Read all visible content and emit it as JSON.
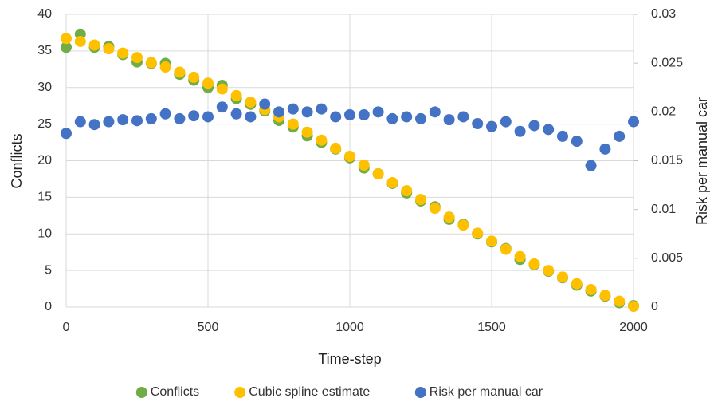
{
  "chart_data": {
    "type": "scatter",
    "x_label": "Time-step",
    "y_label": "Conflicts",
    "y2_label": "Risk per manual car",
    "x": [
      0,
      50,
      100,
      150,
      200,
      250,
      300,
      350,
      400,
      450,
      500,
      550,
      600,
      650,
      700,
      750,
      800,
      850,
      900,
      950,
      1000,
      1050,
      1100,
      1150,
      1200,
      1250,
      1300,
      1350,
      1400,
      1450,
      1500,
      1550,
      1600,
      1650,
      1700,
      1750,
      1800,
      1850,
      1900,
      1950,
      2000
    ],
    "series": [
      {
        "name": "Conflicts",
        "color": "#70ad47",
        "values": [
          35.5,
          37.3,
          35.5,
          35.6,
          34.5,
          33.5,
          33.3,
          33.3,
          31.8,
          31.0,
          30.0,
          30.3,
          28.5,
          27.7,
          26.8,
          25.5,
          24.6,
          23.4,
          22.5,
          21.6,
          20.4,
          19.0,
          18.2,
          16.9,
          15.6,
          14.5,
          13.7,
          12.0,
          11.3,
          10.0,
          8.9,
          8.0,
          6.5,
          5.8,
          4.9,
          4.0,
          3.0,
          2.2,
          1.5,
          0.6,
          0.2
        ]
      },
      {
        "name": "Cubic spline estimate",
        "color": "#ffc000",
        "values": [
          36.7,
          36.3,
          35.8,
          35.3,
          34.7,
          34.1,
          33.4,
          32.8,
          32.1,
          31.4,
          30.6,
          29.8,
          28.9,
          28.0,
          27.0,
          26.0,
          25.0,
          23.9,
          22.8,
          21.7,
          20.6,
          19.4,
          18.2,
          17.0,
          15.9,
          14.7,
          13.5,
          12.3,
          11.2,
          10.1,
          9.0,
          7.9,
          6.9,
          5.9,
          5.0,
          4.1,
          3.2,
          2.4,
          1.6,
          0.8,
          0.1
        ]
      },
      {
        "name": "Risk per manual car",
        "color": "#4472c4",
        "axis": "y2",
        "values": [
          0.0178,
          0.019,
          0.0187,
          0.019,
          0.0192,
          0.0191,
          0.0193,
          0.0198,
          0.0193,
          0.0196,
          0.0195,
          0.0205,
          0.0198,
          0.0195,
          0.0208,
          0.02,
          0.0203,
          0.02,
          0.0203,
          0.0195,
          0.0197,
          0.0197,
          0.02,
          0.0193,
          0.0195,
          0.0193,
          0.02,
          0.0192,
          0.0195,
          0.0188,
          0.0185,
          0.019,
          0.018,
          0.0186,
          0.0182,
          0.0175,
          0.017,
          0.0145,
          0.0162,
          0.0175,
          0.019
        ]
      }
    ],
    "xlim": [
      0,
      2000
    ],
    "xticks": [
      0,
      500,
      1000,
      1500,
      2000
    ],
    "ylim": [
      0,
      40
    ],
    "yticks": [
      0,
      5,
      10,
      15,
      20,
      25,
      30,
      35,
      40
    ],
    "y2lim": [
      0,
      0.03
    ],
    "y2ticks": [
      0,
      0.005,
      0.01,
      0.015,
      0.02,
      0.025,
      0.03
    ],
    "grid": true,
    "legend": "bottom"
  }
}
